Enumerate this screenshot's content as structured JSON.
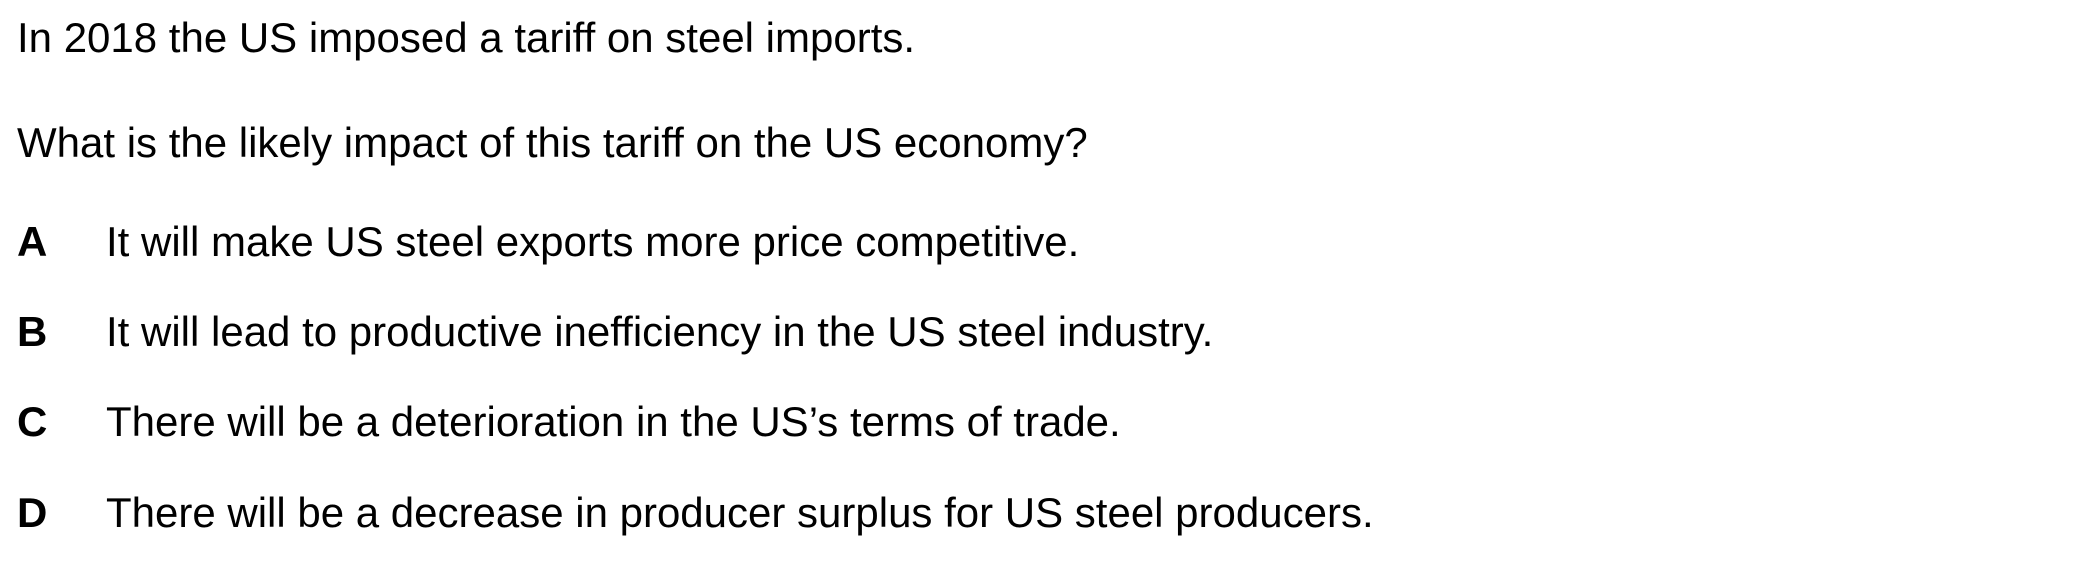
{
  "question": {
    "context": "In 2018 the US imposed a tariff on steel imports.",
    "prompt": "What is the likely impact of this tariff on the US economy?"
  },
  "options": [
    {
      "letter": "A",
      "text": "It will make US steel exports more price competitive."
    },
    {
      "letter": "B",
      "text": "It will lead to productive inefficiency in the US steel industry."
    },
    {
      "letter": "C",
      "text": "There will be a deterioration in the US’s terms of trade."
    },
    {
      "letter": "D",
      "text": "There will be a decrease in producer surplus for US steel producers."
    }
  ]
}
